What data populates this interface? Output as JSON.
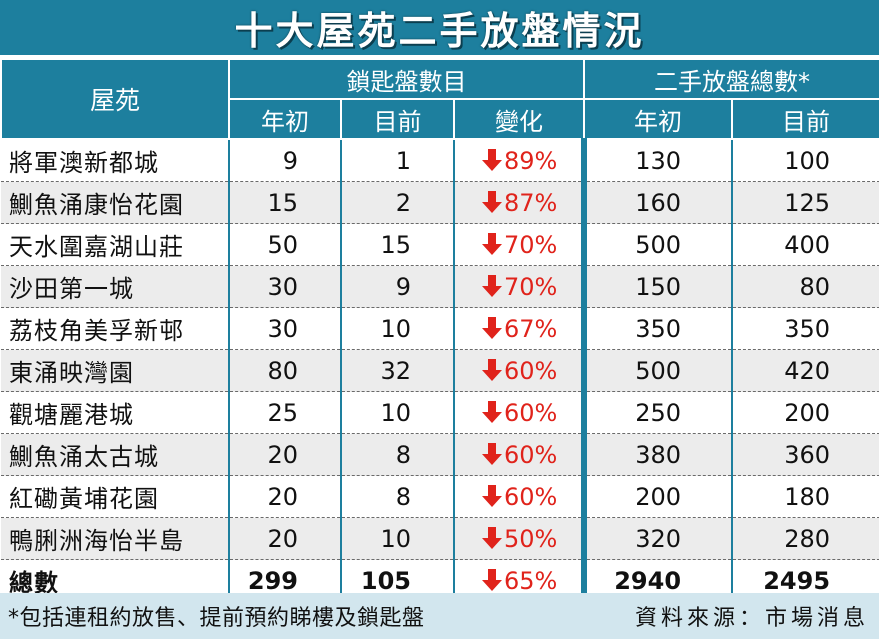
{
  "title": "十大屋苑二手放盤情況",
  "headers": {
    "estate": "屋苑",
    "group_locked": "鎖匙盤數目",
    "group_listings": "二手放盤總數*",
    "year_start": "年初",
    "current": "目前",
    "change": "變化",
    "year_start_2": "年初",
    "current_2": "目前"
  },
  "rows": [
    {
      "estate": "將軍澳新都城",
      "locked_start": "9",
      "locked_now": "1",
      "change": "89%",
      "list_start": "130",
      "list_now": "100"
    },
    {
      "estate": "鰂魚涌康怡花園",
      "locked_start": "15",
      "locked_now": "2",
      "change": "87%",
      "list_start": "160",
      "list_now": "125"
    },
    {
      "estate": "天水圍嘉湖山莊",
      "locked_start": "50",
      "locked_now": "15",
      "change": "70%",
      "list_start": "500",
      "list_now": "400"
    },
    {
      "estate": "沙田第一城",
      "locked_start": "30",
      "locked_now": "9",
      "change": "70%",
      "list_start": "150",
      "list_now": "80"
    },
    {
      "estate": "荔枝角美孚新邨",
      "locked_start": "30",
      "locked_now": "10",
      "change": "67%",
      "list_start": "350",
      "list_now": "350"
    },
    {
      "estate": "東涌映灣園",
      "locked_start": "80",
      "locked_now": "32",
      "change": "60%",
      "list_start": "500",
      "list_now": "420"
    },
    {
      "estate": "觀塘麗港城",
      "locked_start": "25",
      "locked_now": "10",
      "change": "60%",
      "list_start": "250",
      "list_now": "200"
    },
    {
      "estate": "鰂魚涌太古城",
      "locked_start": "20",
      "locked_now": "8",
      "change": "60%",
      "list_start": "380",
      "list_now": "360"
    },
    {
      "estate": "紅磡黃埔花園",
      "locked_start": "20",
      "locked_now": "8",
      "change": "60%",
      "list_start": "200",
      "list_now": "180"
    },
    {
      "estate": "鴨脷洲海怡半島",
      "locked_start": "20",
      "locked_now": "10",
      "change": "50%",
      "list_start": "320",
      "list_now": "280"
    }
  ],
  "total": {
    "estate": "總數",
    "locked_start": "299",
    "locked_now": "105",
    "change": "65%",
    "list_start": "2940",
    "list_now": "2495"
  },
  "footer": {
    "note": "*包括連租約放售、提前預約睇樓及鎖匙盤",
    "source": "資料來源：市場消息"
  },
  "icons": {
    "change_direction": "down-arrow-icon"
  },
  "colors": {
    "header_bg": "#1d7f9e",
    "decrease": "#e0231b",
    "footer_bg": "#d2e6ee",
    "stripe": "#ececec"
  }
}
